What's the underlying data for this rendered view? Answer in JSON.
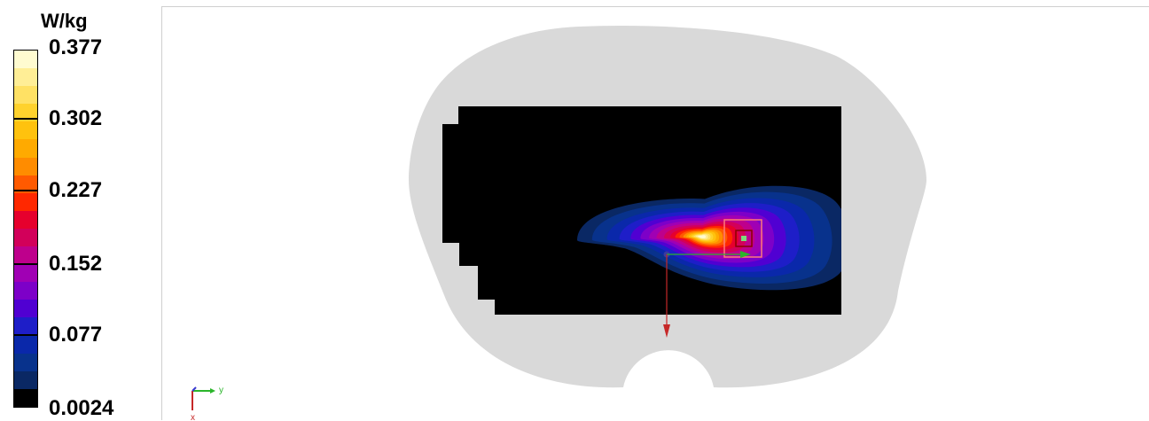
{
  "chart_data": {
    "type": "heatmap",
    "unit": "W/kg",
    "scale": {
      "min": 0.0024,
      "max": 0.377,
      "tick_labels": [
        "0.377",
        "0.302",
        "0.227",
        "0.152",
        "0.077",
        "0.0024"
      ],
      "tick_values": [
        0.377,
        0.302,
        0.227,
        0.152,
        0.077,
        0.0024
      ]
    },
    "colormap": [
      "#fffbd0",
      "#ffee96",
      "#ffe164",
      "#ffd22d",
      "#ffc20e",
      "#ffaa00",
      "#ff8c00",
      "#ff5a00",
      "#ff2800",
      "#e6002d",
      "#d2005a",
      "#be008c",
      "#a000b4",
      "#7d00c8",
      "#5000d2",
      "#1e1ec8",
      "#0a28aa",
      "#08328c",
      "#0a2864",
      "#000000"
    ],
    "peak": {
      "value": 0.377,
      "x": 0.76,
      "y": 0.52
    },
    "axes": {
      "y_label": "y",
      "x_label": "x"
    }
  },
  "colors": {
    "phantom": "#d9d9d9",
    "region": "#000000",
    "y_axis_arrow": "#2bb52b",
    "x_axis_arrow": "#c62828",
    "marker_box": "#ff7a7a"
  }
}
